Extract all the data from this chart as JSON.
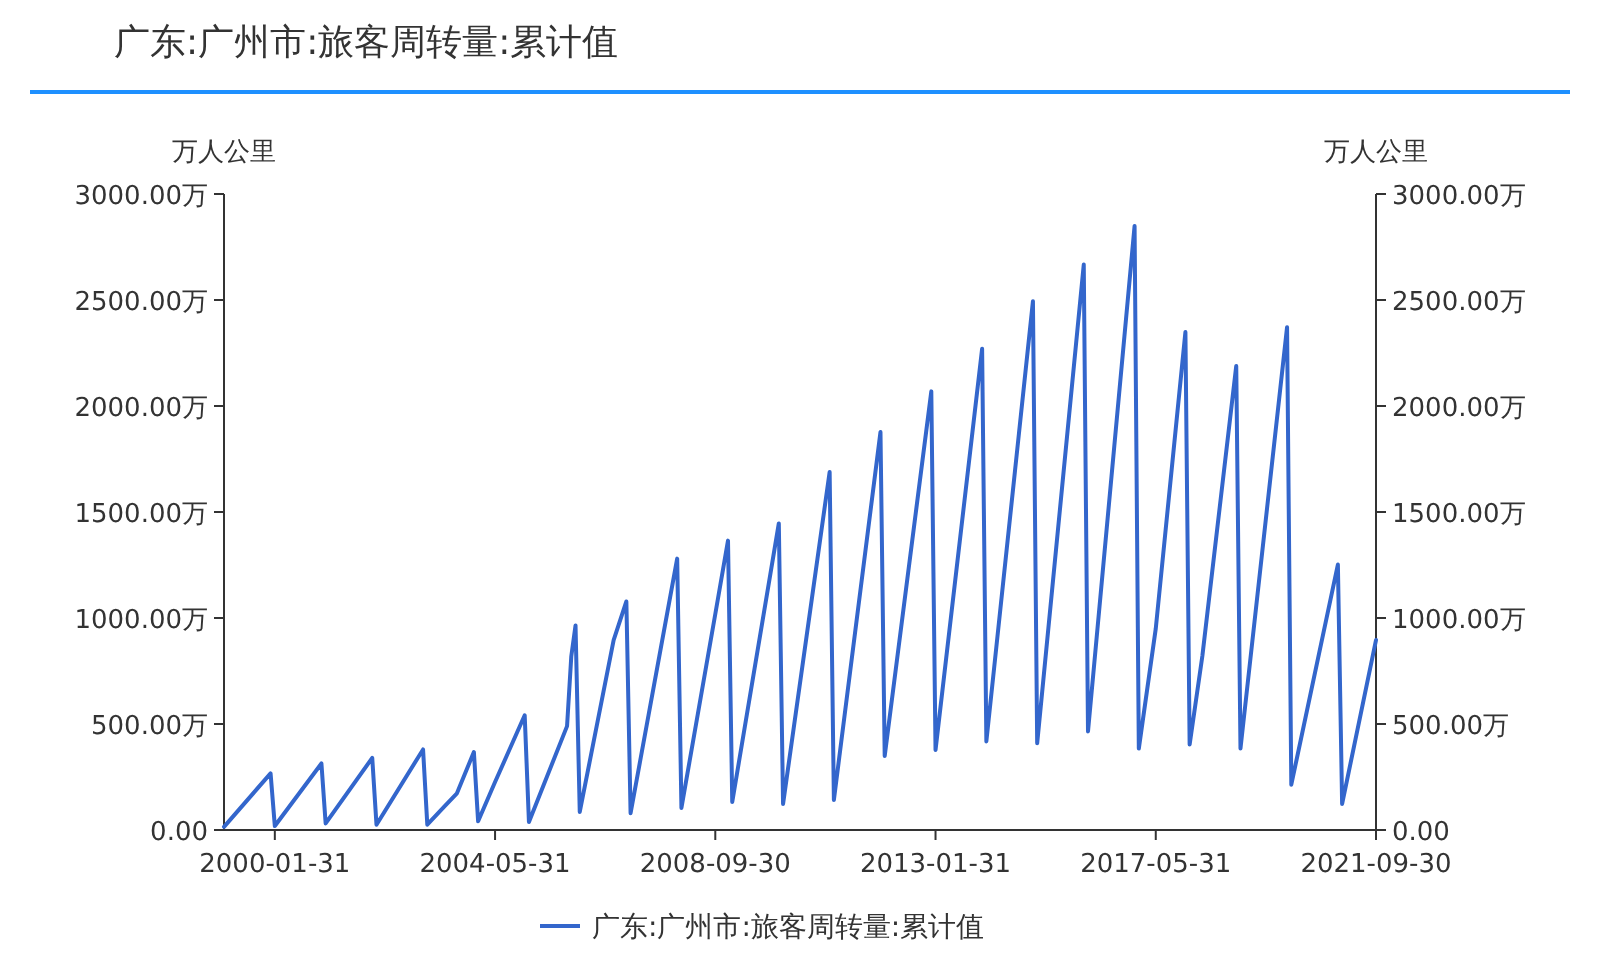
{
  "chart_data": {
    "type": "line",
    "title": "广东:广州市:旅客周转量:累计值",
    "ylabel": "万人公里",
    "y2label": "万人公里",
    "x": [
      "1999-01",
      "1999-12",
      "2000-01",
      "2000-12",
      "2001-01",
      "2001-12",
      "2002-01",
      "2002-12",
      "2003-01",
      "2003-05",
      "2003-08",
      "2003-12",
      "2004-01",
      "2004-05",
      "2004-12",
      "2005-01",
      "2005-10",
      "2005-11",
      "2005-12",
      "2006-01",
      "2006-09",
      "2006-12",
      "2007-01",
      "2007-12",
      "2008-01",
      "2008-09",
      "2008-12",
      "2009-01",
      "2009-12",
      "2010-01",
      "2010-12",
      "2011-01",
      "2011-12",
      "2012-01",
      "2012-12",
      "2013-01",
      "2013-12",
      "2014-01",
      "2014-12",
      "2015-01",
      "2015-12",
      "2016-01",
      "2016-12",
      "2017-01",
      "2017-05",
      "2017-12",
      "2018-01",
      "2018-04",
      "2018-12",
      "2019-01",
      "2019-12",
      "2020-01",
      "2020-12",
      "2021-01",
      "2021-09"
    ],
    "series": [
      {
        "name": "广东:广州市:旅客周转量:累计值",
        "color": "#3366cc",
        "values": [
          15,
          267,
          19,
          314,
          31,
          340,
          25,
          380,
          25,
          110,
          173,
          368,
          41,
          226,
          541,
          38,
          490,
          820,
          965,
          85,
          896,
          1078,
          79,
          1280,
          104,
          1019,
          1365,
          132,
          1446,
          123,
          1689,
          142,
          1877,
          349,
          2069,
          377,
          2270,
          418,
          2494,
          409,
          2667,
          465,
          2849,
          384,
          950,
          2349,
          403,
          821,
          2189,
          384,
          2371,
          214,
          1252,
          123,
          896
        ]
      }
    ],
    "xlim": [
      "1999-01",
      "2021-09"
    ],
    "xticks": [
      {
        "value": "2000-01",
        "label": "2000-01-31"
      },
      {
        "value": "2004-05",
        "label": "2004-05-31"
      },
      {
        "value": "2008-09",
        "label": "2008-09-30"
      },
      {
        "value": "2013-01",
        "label": "2013-01-31"
      },
      {
        "value": "2017-05",
        "label": "2017-05-31"
      },
      {
        "value": "2021-09",
        "label": "2021-09-30"
      }
    ],
    "ylim": [
      0,
      3000
    ],
    "yticks": [
      {
        "value": 0,
        "label": "0.00"
      },
      {
        "value": 500,
        "label": "500.00万"
      },
      {
        "value": 1000,
        "label": "1000.00万"
      },
      {
        "value": 1500,
        "label": "1500.00万"
      },
      {
        "value": 2000,
        "label": "2000.00万"
      },
      {
        "value": 2500,
        "label": "2500.00万"
      },
      {
        "value": 3000,
        "label": "3000.00万"
      }
    ],
    "y2lim": [
      0,
      3000
    ],
    "y2ticks": [
      {
        "value": 0,
        "label": "0.00"
      },
      {
        "value": 500,
        "label": "500.00万"
      },
      {
        "value": 1000,
        "label": "1000.00万"
      },
      {
        "value": 1500,
        "label": "1500.00万"
      },
      {
        "value": 2000,
        "label": "2000.00万"
      },
      {
        "value": 2500,
        "label": "2500.00万"
      },
      {
        "value": 3000,
        "label": "3000.00万"
      }
    ],
    "grid": false,
    "legend": "bottom",
    "line_style": "solid"
  }
}
